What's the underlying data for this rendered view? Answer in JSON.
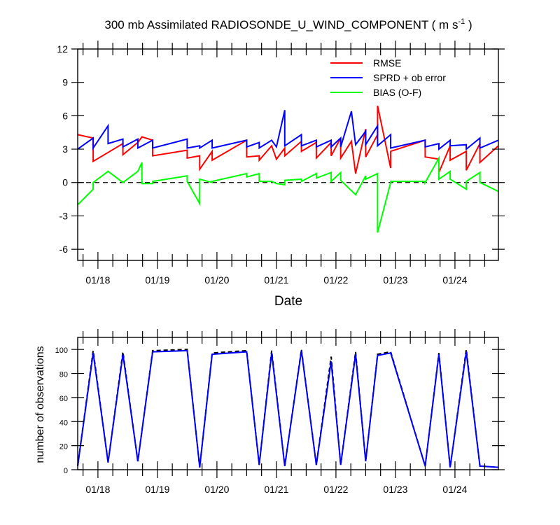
{
  "chart_data": [
    {
      "type": "line",
      "title": "300 mb Assimilated RADIOSONDE_U_WIND_COMPONENT ( m s",
      "title_units_exp": "-1",
      "title_close": " )",
      "xlabel": "Date",
      "ylabel": "",
      "ylim": [
        -7,
        12
      ],
      "xlim": [
        17.66,
        24.73
      ],
      "yticks": [
        -6,
        -3,
        0,
        3,
        6,
        9,
        12
      ],
      "ytick_labels": [
        "-6",
        "-3",
        "0",
        "3",
        "6",
        "9",
        "12"
      ],
      "xticks": [
        18,
        19,
        20,
        21,
        22,
        23,
        24
      ],
      "xtick_labels": [
        "01/18",
        "01/19",
        "01/20",
        "01/21",
        "01/22",
        "01/23",
        "01/24"
      ],
      "legend_position": "top-right",
      "legend": [
        "RMSE",
        "SPRD + ob error",
        "BIAS (O-F)"
      ],
      "zero_line": true,
      "series": [
        {
          "name": "RMSE",
          "color": "#ff0000",
          "x": [
            17.66,
            17.92,
            17.92,
            18.17,
            18.42,
            18.42,
            18.67,
            18.74,
            18.92,
            18.92,
            19.5,
            19.5,
            19.71,
            19.71,
            19.92,
            19.92,
            20.5,
            20.5,
            20.71,
            20.71,
            20.92,
            21.0,
            21.14,
            21.14,
            21.42,
            21.42,
            21.67,
            21.67,
            21.92,
            21.92,
            22.08,
            22.08,
            22.26,
            22.33,
            22.5,
            22.5,
            22.7,
            22.7,
            22.92,
            22.92,
            23.5,
            23.5,
            23.73,
            23.73,
            23.92,
            23.92,
            24.19,
            24.19,
            24.42,
            24.42,
            24.73
          ],
          "values": [
            4.3,
            4.0,
            1.9,
            2.7,
            3.5,
            2.5,
            3.6,
            4.1,
            3.8,
            2.4,
            2.9,
            2.2,
            2.4,
            1.2,
            2.8,
            2.0,
            3.8,
            2.3,
            2.4,
            2.0,
            3.3,
            2.1,
            3.1,
            2.4,
            3.7,
            2.8,
            3.6,
            2.2,
            3.6,
            2.4,
            4.0,
            2.2,
            3.7,
            0.8,
            4.8,
            2.3,
            4.3,
            6.9,
            1.3,
            2.8,
            3.8,
            2.3,
            2.1,
            0.9,
            3.3,
            2.0,
            2.8,
            1.1,
            3.5,
            1.8,
            3.3
          ]
        },
        {
          "name": "SPRD + ob error",
          "color": "#0000ff",
          "x": [
            17.66,
            17.92,
            17.92,
            18.17,
            18.17,
            18.42,
            18.42,
            18.67,
            18.67,
            18.92,
            18.92,
            19.5,
            19.5,
            19.71,
            19.71,
            19.92,
            19.92,
            20.5,
            20.5,
            20.71,
            20.71,
            20.92,
            21.0,
            21.14,
            21.14,
            21.42,
            21.42,
            21.67,
            21.67,
            21.92,
            21.92,
            22.08,
            22.08,
            22.26,
            22.33,
            22.5,
            22.5,
            22.7,
            22.7,
            22.92,
            22.92,
            23.5,
            23.5,
            23.73,
            23.73,
            23.92,
            23.92,
            24.19,
            24.19,
            24.42,
            24.42,
            24.73
          ],
          "values": [
            3.0,
            4.0,
            3.1,
            5.1,
            3.5,
            3.9,
            3.2,
            3.9,
            3.1,
            3.8,
            3.1,
            3.9,
            3.1,
            3.3,
            3.1,
            3.8,
            3.1,
            3.8,
            3.2,
            3.6,
            3.1,
            3.8,
            3.2,
            6.5,
            3.3,
            4.3,
            3.3,
            3.8,
            3.2,
            3.8,
            3.2,
            4.0,
            3.2,
            6.4,
            3.4,
            4.6,
            3.4,
            5.1,
            3.3,
            4.3,
            3.1,
            3.8,
            3.2,
            3.5,
            3.0,
            3.8,
            3.3,
            3.4,
            3.0,
            4.0,
            3.1,
            3.8
          ]
        },
        {
          "name": "BIAS (O-F)",
          "color": "#00ff00",
          "x": [
            17.66,
            17.92,
            17.92,
            18.17,
            18.42,
            18.42,
            18.67,
            18.74,
            18.74,
            18.92,
            18.92,
            19.5,
            19.5,
            19.71,
            19.71,
            19.92,
            19.92,
            20.5,
            20.5,
            20.71,
            20.71,
            20.92,
            21.0,
            21.14,
            21.14,
            21.42,
            21.42,
            21.67,
            21.67,
            21.92,
            21.92,
            22.08,
            22.08,
            22.33,
            22.5,
            22.5,
            22.7,
            22.7,
            22.92,
            22.92,
            23.5,
            23.5,
            23.73,
            23.73,
            23.92,
            23.92,
            24.19,
            24.19,
            24.42,
            24.42,
            24.73
          ],
          "values": [
            -2.0,
            -0.6,
            0.0,
            1.0,
            0.0,
            0.0,
            1.0,
            1.8,
            -0.1,
            -0.1,
            0.1,
            0.6,
            0.1,
            -1.9,
            0.3,
            0.0,
            0.1,
            0.8,
            0.5,
            0.8,
            0.1,
            0.1,
            -0.1,
            -0.2,
            0.2,
            0.3,
            0.1,
            0.8,
            0.4,
            0.9,
            0.1,
            0.9,
            0.2,
            -1.1,
            0.6,
            0.3,
            0.8,
            -4.5,
            0.0,
            0.1,
            0.1,
            0.0,
            2.2,
            0.3,
            1.0,
            0.3,
            -0.6,
            0.1,
            0.9,
            0.0,
            -0.8
          ]
        }
      ]
    },
    {
      "type": "line",
      "title": "",
      "xlabel": "",
      "ylabel": "number of observations",
      "ylim": [
        0,
        110
      ],
      "xlim": [
        17.66,
        24.73
      ],
      "yticks": [
        0,
        20,
        40,
        60,
        80,
        100
      ],
      "ytick_labels": [
        "0",
        "20",
        "40",
        "60",
        "80",
        "100"
      ],
      "xticks": [
        18,
        19,
        20,
        21,
        22,
        23,
        24
      ],
      "xtick_labels": [
        "01/18",
        "01/19",
        "01/20",
        "01/21",
        "01/22",
        "01/23",
        "01/24"
      ],
      "series": [
        {
          "name": "observations (dashed)",
          "color": "#000000",
          "dashed": true,
          "x": [
            17.66,
            17.92,
            18.17,
            18.42,
            18.67,
            18.92,
            19.5,
            19.71,
            19.92,
            20.5,
            20.71,
            20.92,
            21.14,
            21.42,
            21.67,
            21.92,
            22.08,
            22.33,
            22.5,
            22.7,
            22.92,
            23.5,
            23.73,
            23.92,
            24.19,
            24.42,
            24.73
          ],
          "values": [
            3,
            99,
            6,
            98,
            7,
            99,
            100,
            2,
            97,
            99,
            4,
            99,
            3,
            100,
            4,
            94,
            4,
            98,
            7,
            96,
            98,
            3,
            97,
            2,
            100,
            3,
            2
          ]
        },
        {
          "name": "observations (used)",
          "color": "#0000ff",
          "x": [
            17.66,
            17.92,
            18.17,
            18.42,
            18.67,
            18.92,
            19.5,
            19.71,
            19.92,
            20.5,
            20.71,
            20.92,
            21.14,
            21.42,
            21.67,
            21.92,
            22.08,
            22.33,
            22.5,
            22.7,
            22.92,
            23.5,
            23.73,
            23.92,
            24.19,
            24.42,
            24.73
          ],
          "values": [
            3,
            97,
            6,
            96,
            7,
            98,
            99,
            2,
            96,
            98,
            4,
            97,
            3,
            99,
            4,
            90,
            4,
            96,
            7,
            95,
            97,
            3,
            96,
            2,
            98,
            3,
            2
          ]
        }
      ]
    }
  ]
}
